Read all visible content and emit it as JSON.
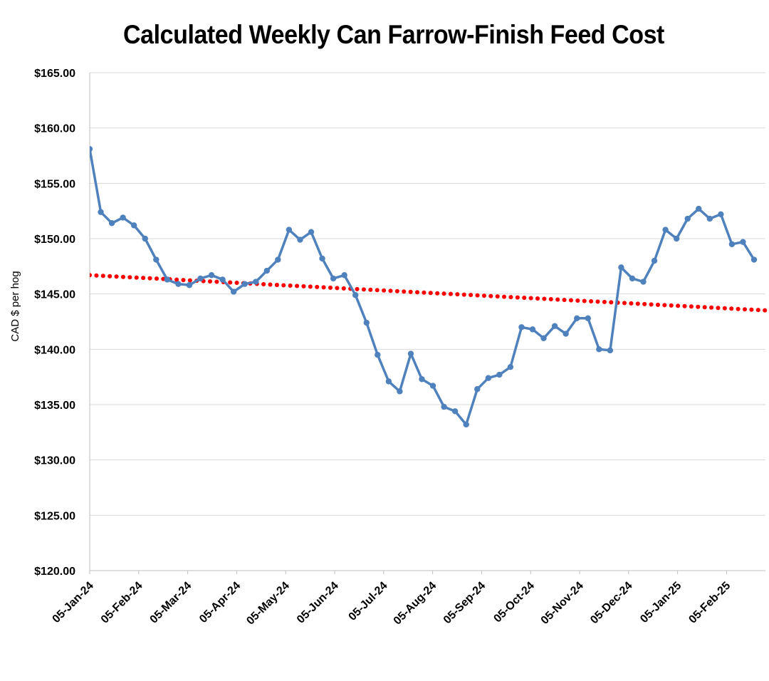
{
  "chart_data": {
    "type": "line",
    "title": "Calculated Weekly Can Farrow-Finish Feed Cost",
    "xlabel": "",
    "ylabel": "CAD $ per hog",
    "ylim": [
      120,
      165
    ],
    "y_ticks": [
      "$120.00",
      "$125.00",
      "$130.00",
      "$135.00",
      "$140.00",
      "$145.00",
      "$150.00",
      "$155.00",
      "$160.00",
      "$165.00"
    ],
    "x_tick_labels": [
      "05-Jan-24",
      "05-Feb-24",
      "05-Mar-24",
      "05-Apr-24",
      "05-May-24",
      "05-Jun-24",
      "05-Jul-24",
      "05-Aug-24",
      "05-Sep-24",
      "05-Oct-24",
      "05-Nov-24",
      "05-Dec-24",
      "05-Jan-25",
      "05-Feb-25"
    ],
    "grid": true,
    "legend": "none",
    "series": [
      {
        "color": "#4f81bd",
        "marker": "circle",
        "values": [
          158.1,
          152.4,
          151.4,
          151.9,
          151.2,
          150.0,
          148.1,
          146.3,
          145.9,
          145.8,
          146.4,
          146.7,
          146.3,
          145.2,
          145.9,
          146.1,
          147.1,
          148.1,
          150.8,
          149.9,
          150.6,
          148.2,
          146.4,
          146.7,
          144.9,
          142.4,
          139.5,
          137.1,
          136.2,
          139.6,
          137.3,
          136.7,
          134.8,
          134.4,
          133.2,
          136.4,
          137.4,
          137.7,
          138.4,
          142.0,
          141.8,
          141.0,
          142.1,
          141.4,
          142.8,
          142.8,
          140.0,
          139.9,
          147.4,
          146.4,
          146.1,
          148.0,
          150.8,
          150.0,
          151.8,
          152.7,
          151.8,
          152.2,
          149.5,
          149.7,
          148.1
        ]
      },
      {
        "type": "trendline",
        "style": "dotted",
        "color": "#ff0000",
        "start": 146.7,
        "end": 143.5
      }
    ]
  }
}
